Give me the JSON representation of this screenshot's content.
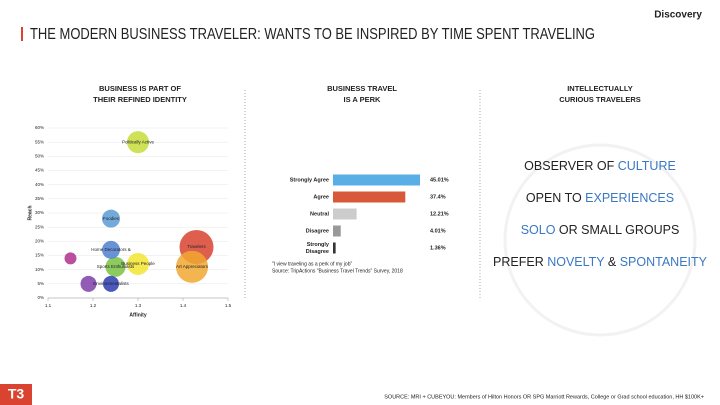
{
  "brand": "Discovery",
  "title": "THE MODERN BUSINESS TRAVELER: WANTS TO BE INSPIRED BY TIME SPENT TRAVELING",
  "logo": "T3",
  "footer": "SOURCE: MRI + CUBEYOU: Members of Hilton Honors OR SPG Marriott Rewards, College or Grad school education, HH $100K+",
  "chart_data": [
    {
      "type": "bubble",
      "subtitle": [
        "BUSINESS IS PART OF",
        "THEIR REFINED IDENTITY"
      ],
      "xlabel": "Affinity",
      "ylabel": "Reach",
      "labels": [
        "Travelers",
        "Art Appreciators",
        "Politically Active",
        "Business People",
        "Sports Enthusiasts",
        "Home Decorators &",
        "Foodies",
        null,
        null,
        "Environmentalists"
      ],
      "x": [
        1.43,
        1.42,
        1.3,
        1.3,
        1.25,
        1.24,
        1.24,
        1.15,
        1.19,
        1.24
      ],
      "values": [
        18,
        11,
        55,
        12,
        11,
        17,
        28,
        14,
        5,
        5
      ],
      "sizes": [
        17,
        16,
        11,
        11,
        10,
        9,
        9,
        6,
        8,
        8
      ],
      "colors": [
        "#d9432f",
        "#f0a830",
        "#c5dc3a",
        "#f3e531",
        "#79c143",
        "#4f7fd0",
        "#5b9bd5",
        "#b0308c",
        "#7d3fa8",
        "#2c3bb0"
      ],
      "xlim": [
        1.1,
        1.5
      ],
      "xticks": [
        1.1,
        1.2,
        1.3,
        1.4,
        1.5
      ],
      "ylim": [
        0,
        60
      ],
      "yticks": [
        {
          "value": 0,
          "label": "0%"
        },
        {
          "value": 5,
          "label": "5%"
        },
        {
          "value": 10,
          "label": "10%"
        },
        {
          "value": 15,
          "label": "15%"
        },
        {
          "value": 20,
          "label": "20%"
        },
        {
          "value": 25,
          "label": "25%"
        },
        {
          "value": 30,
          "label": "30%"
        },
        {
          "value": 35,
          "label": "35%"
        },
        {
          "value": 40,
          "label": "40%"
        },
        {
          "value": 45,
          "label": "45%"
        },
        {
          "value": 50,
          "label": "50%"
        },
        {
          "value": 55,
          "label": "55%"
        },
        {
          "value": 60,
          "label": "60%"
        }
      ]
    },
    {
      "type": "hbar",
      "subtitle": [
        "BUSINESS TRAVEL",
        "IS A PERK"
      ],
      "categories": [
        "Strongly Agree",
        "Agree",
        "Neutral",
        "Disagree",
        "Strongly Disagree"
      ],
      "values": [
        45.01,
        37.4,
        12.21,
        4.01,
        1.36
      ],
      "value_labels": [
        "45.01%",
        "37.4%",
        "12.21%",
        "4.01%",
        "1.36%"
      ],
      "colors": [
        "#5aaee6",
        "#d9583a",
        "#cccccc",
        "#999999",
        "#333333"
      ],
      "notes": [
        "\"I view traveling as a perk of my job\"",
        "Source: TripActions \"Business Travel Trends\" Survey, 2018"
      ]
    }
  ],
  "traits": {
    "subtitle": [
      "INTELLECTUALLY",
      "CURIOUS TRAVELERS"
    ],
    "items": [
      [
        {
          "text": "OBSERVER OF ",
          "highlight": false
        },
        {
          "text": "CULTURE",
          "highlight": true
        }
      ],
      [
        {
          "text": "OPEN TO ",
          "highlight": false
        },
        {
          "text": "EXPERIENCES",
          "highlight": true
        }
      ],
      [
        {
          "text": "SOLO",
          "highlight": true
        },
        {
          "text": " OR SMALL GROUPS",
          "highlight": false
        }
      ],
      [
        {
          "text": "PREFER ",
          "highlight": false
        },
        {
          "text": "NOVELTY",
          "highlight": true
        },
        {
          "text": " & ",
          "highlight": false
        },
        {
          "text": "SPONTANEITY",
          "highlight": true
        }
      ]
    ]
  }
}
